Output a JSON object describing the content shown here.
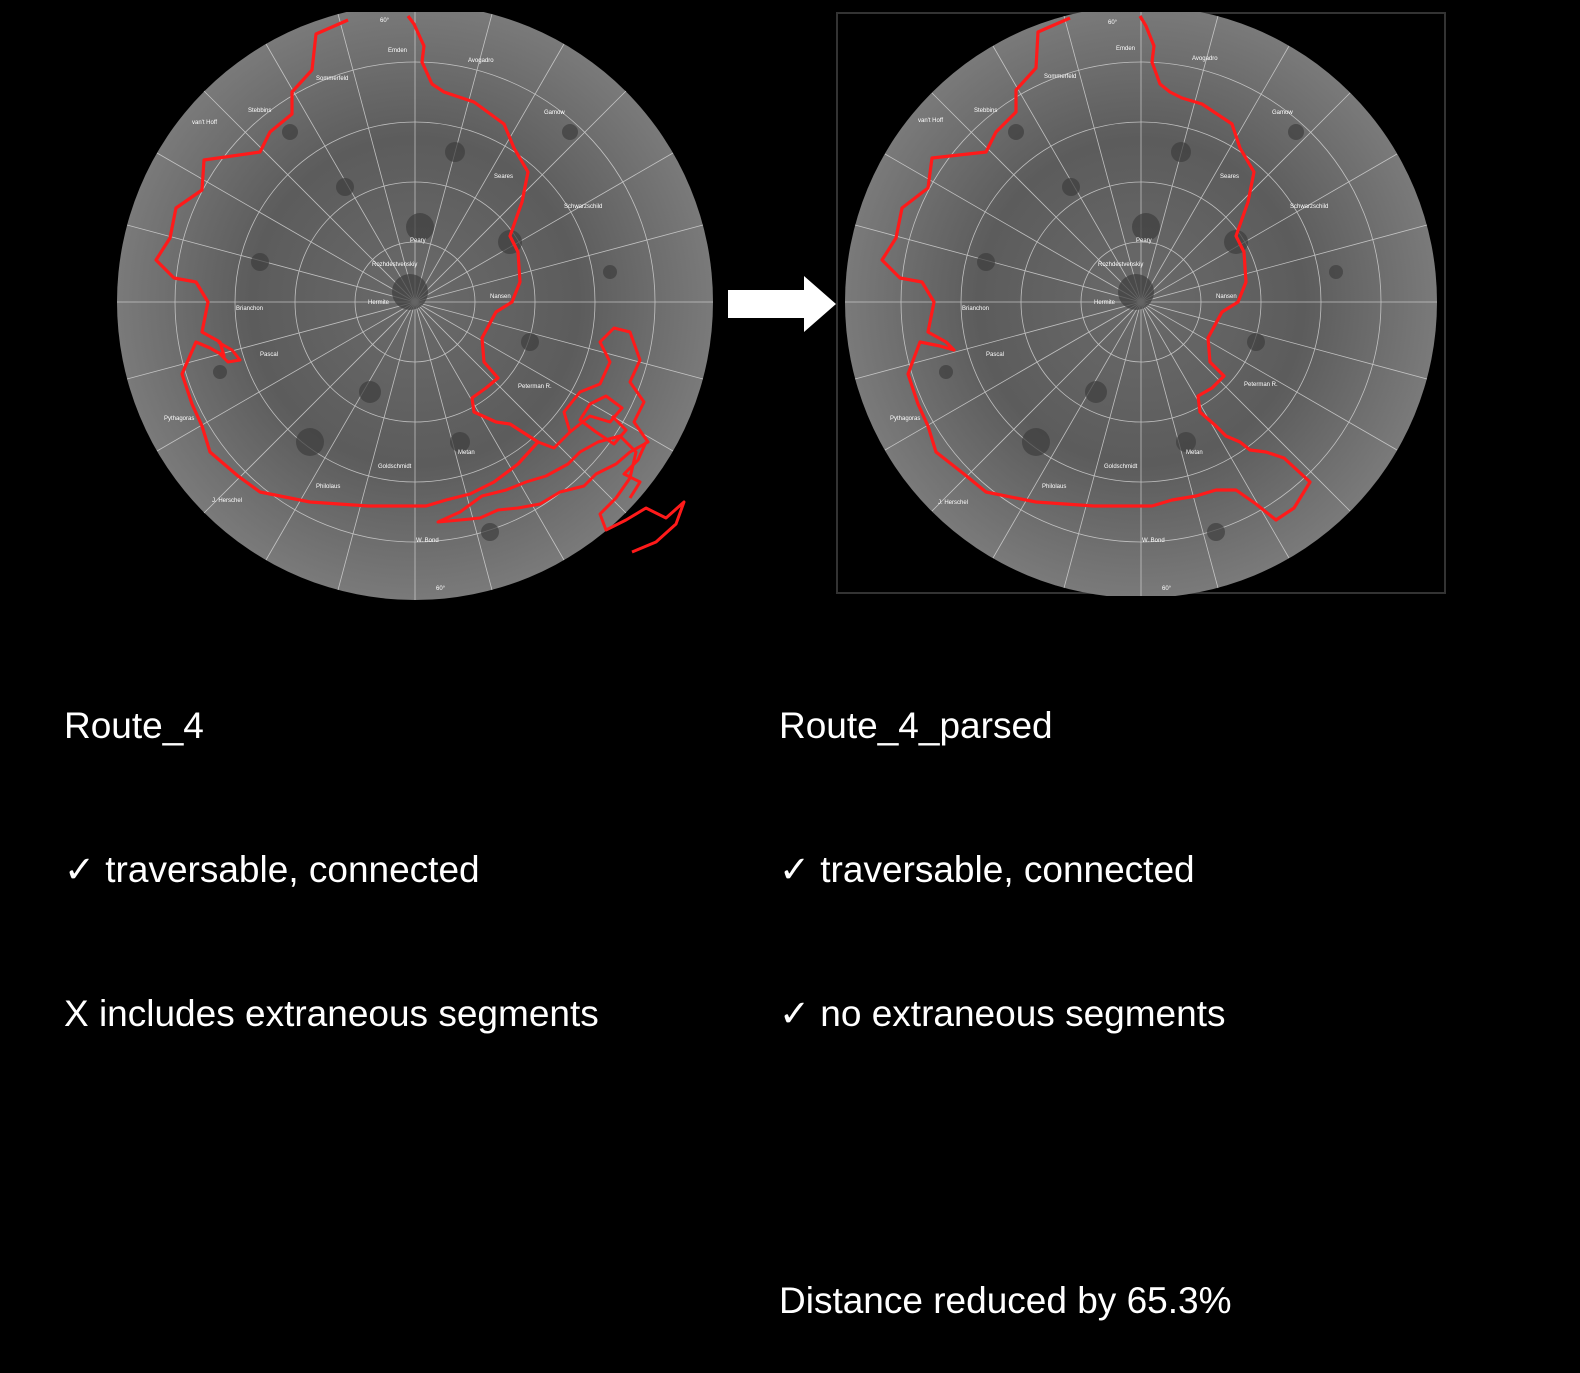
{
  "left": {
    "title": "Route_4",
    "lines": [
      "✓ traversable, connected",
      "X includes extraneous segments"
    ]
  },
  "right": {
    "title": "Route_4_parsed",
    "lines": [
      "✓ traversable, connected",
      "✓ no extraneous segments"
    ],
    "summary": "Distance reduced by 65.3%"
  },
  "map_labels": [
    "60°",
    "Emden",
    "Avogadro",
    "Sommerfeld",
    "Stebbins",
    "van't Hoff",
    "Gamow",
    "Seares",
    "Schwarzschild",
    "Peary",
    "Rozhdestvenskiy",
    "Hermite",
    "Brianchon",
    "Nansen",
    "Pascal",
    "Peterman R.",
    "Pythagoras",
    "Metan",
    "Goldschmidt",
    "Philolaus",
    "J. Herschel",
    "W. Bond"
  ],
  "colors": {
    "route": "#ff1a1a",
    "background": "#000000",
    "arrow": "#ffffff",
    "grid": "#d8d8d8"
  },
  "icons": {
    "arrow": "right-arrow-icon"
  }
}
